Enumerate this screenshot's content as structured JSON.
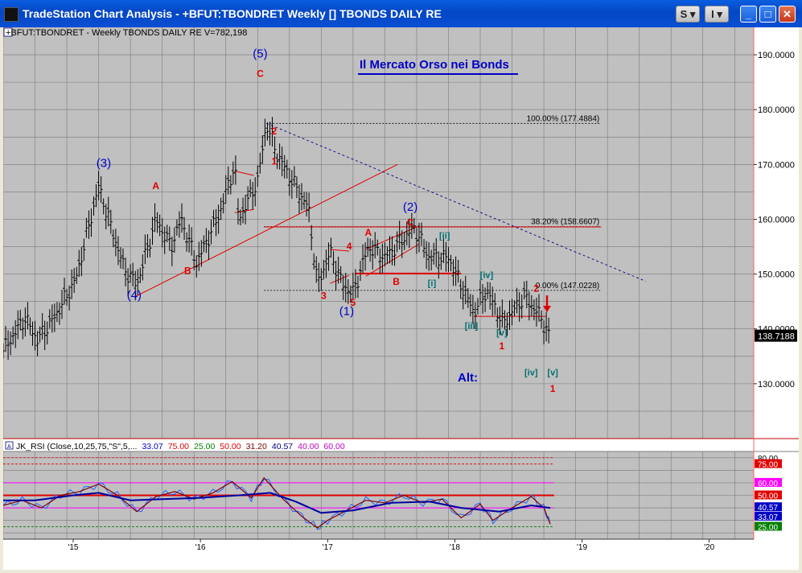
{
  "window": {
    "title": "TradeStation Chart Analysis - +BFUT:TBONDRET Weekly [] TBONDS DAILY RE",
    "buttons": {
      "style_menu": "S",
      "settings_menu": "I"
    }
  },
  "price_panel": {
    "header": "+BFUT:TBONDRET - Weekly  TBONDS DAILY RE  V=782,198",
    "chart_title": "Il Mercato Orso nei Bonds",
    "last_price": "138.7188",
    "alt_label": "Alt:"
  },
  "indicator_panel": {
    "header_label": "JK_RSI (Close,10,25,75,\"S\",5,...",
    "header_values": [
      {
        "text": "33.07",
        "color": "#0000c8"
      },
      {
        "text": "75.00",
        "color": "#e00000"
      },
      {
        "text": "25.00",
        "color": "#008000"
      },
      {
        "text": "50.00",
        "color": "#e00000"
      },
      {
        "text": "31.20",
        "color": "#800000"
      },
      {
        "text": "40.57",
        "color": "#000080"
      },
      {
        "text": "40.00",
        "color": "#c000c0"
      },
      {
        "text": "60.00",
        "color": "#c000c0"
      }
    ],
    "tags": [
      {
        "text": "80.00",
        "y": 80,
        "bg": "#ffffff",
        "fg": "#000000"
      },
      {
        "text": "75.00",
        "y": 75,
        "bg": "#e00000",
        "fg": "#ffffff"
      },
      {
        "text": "60.00",
        "y": 60,
        "bg": "#ff00ff",
        "fg": "#ffffff"
      },
      {
        "text": "50.00",
        "y": 50,
        "bg": "#e00000",
        "fg": "#ffffff"
      },
      {
        "text": "40.57",
        "y": 40.57,
        "bg": "#0000c8",
        "fg": "#ffffff"
      },
      {
        "text": "33.07",
        "y": 33.07,
        "bg": "#0000c8",
        "fg": "#ffffff"
      },
      {
        "text": "25.00",
        "y": 25,
        "bg": "#008000",
        "fg": "#ffffff"
      }
    ]
  },
  "colors": {
    "blue": "#0000c8",
    "red": "#e00000",
    "teal": "#007070",
    "price_tag_bg": "#000000"
  },
  "chart_data": {
    "type": "bar",
    "x_tick_labels": [
      "'15",
      "'16",
      "'17",
      "'18",
      "'19",
      "'20"
    ],
    "x_ticks": [
      2015,
      2016,
      2017,
      2018,
      2019,
      2020
    ],
    "x_range": [
      2014.45,
      2020.35
    ],
    "y_tick_labels": [
      "130.0000",
      "140.0000",
      "150.0000",
      "160.0000",
      "170.0000",
      "180.0000",
      "190.0000"
    ],
    "y_ticks": [
      130,
      140,
      150,
      160,
      170,
      180,
      190
    ],
    "y_range": [
      120,
      195
    ],
    "price_path": [
      [
        2014.45,
        136
      ],
      [
        2014.62,
        142
      ],
      [
        2014.72,
        138
      ],
      [
        2014.85,
        142
      ],
      [
        2015.02,
        149
      ],
      [
        2015.2,
        166
      ],
      [
        2015.4,
        151
      ],
      [
        2015.5,
        148
      ],
      [
        2015.65,
        160
      ],
      [
        2015.77,
        155
      ],
      [
        2015.85,
        160
      ],
      [
        2015.97,
        152
      ],
      [
        2016.15,
        161
      ],
      [
        2016.27,
        170
      ],
      [
        2016.3,
        160
      ],
      [
        2016.45,
        167
      ],
      [
        2016.52,
        177.5
      ],
      [
        2016.6,
        172
      ],
      [
        2016.72,
        167
      ],
      [
        2016.85,
        162
      ],
      [
        2016.92,
        148
      ],
      [
        2017.02,
        154
      ],
      [
        2017.12,
        148
      ],
      [
        2017.2,
        146.5
      ],
      [
        2017.32,
        155
      ],
      [
        2017.45,
        153
      ],
      [
        2017.68,
        158.5
      ],
      [
        2017.8,
        153
      ],
      [
        2017.95,
        153
      ],
      [
        2018.05,
        148
      ],
      [
        2018.15,
        143
      ],
      [
        2018.25,
        147
      ],
      [
        2018.38,
        141
      ],
      [
        2018.55,
        146
      ],
      [
        2018.68,
        142
      ],
      [
        2018.74,
        138.7
      ]
    ],
    "fib_levels": [
      {
        "label": "100.00% (177.4884)",
        "value": 177.4884
      },
      {
        "label": "38.20% (158.6607)",
        "value": 158.6607
      },
      {
        "label": "0.00% (147.0228)",
        "value": 147.0228
      }
    ],
    "wave_labels": [
      {
        "text": "(3)",
        "x": 2015.24,
        "y": 169.5,
        "color": "blue"
      },
      {
        "text": "(4)",
        "x": 2015.48,
        "y": 145.5,
        "color": "blue"
      },
      {
        "text": "(5)",
        "x": 2016.47,
        "y": 189.5,
        "color": "blue"
      },
      {
        "text": "C",
        "x": 2016.47,
        "y": 186,
        "color": "red"
      },
      {
        "text": "A",
        "x": 2015.65,
        "y": 165.5,
        "color": "red"
      },
      {
        "text": "B",
        "x": 2015.9,
        "y": 150,
        "color": "red"
      },
      {
        "text": "2",
        "x": 2016.58,
        "y": 175.5,
        "color": "red"
      },
      {
        "text": "1",
        "x": 2016.58,
        "y": 170,
        "color": "red"
      },
      {
        "text": "3",
        "x": 2016.97,
        "y": 145.5,
        "color": "red"
      },
      {
        "text": "4",
        "x": 2017.17,
        "y": 154.5,
        "color": "red"
      },
      {
        "text": "5",
        "x": 2017.2,
        "y": 144.2,
        "color": "red"
      },
      {
        "text": "(1)",
        "x": 2017.15,
        "y": 142.5,
        "color": "blue"
      },
      {
        "text": "(2)",
        "x": 2017.65,
        "y": 161.5,
        "color": "blue"
      },
      {
        "text": "C",
        "x": 2017.65,
        "y": 158.8,
        "color": "red"
      },
      {
        "text": "A",
        "x": 2017.32,
        "y": 157,
        "color": "red"
      },
      {
        "text": "B",
        "x": 2017.54,
        "y": 148,
        "color": "red"
      },
      {
        "text": "[ii]",
        "x": 2017.92,
        "y": 156.5,
        "color": "teal"
      },
      {
        "text": "[i]",
        "x": 2017.82,
        "y": 147.8,
        "color": "teal"
      },
      {
        "text": "[iii]",
        "x": 2018.13,
        "y": 140,
        "color": "teal"
      },
      {
        "text": "[iv]",
        "x": 2018.25,
        "y": 149.3,
        "color": "teal"
      },
      {
        "text": "[v]",
        "x": 2018.37,
        "y": 138.8,
        "color": "teal"
      },
      {
        "text": "1",
        "x": 2018.37,
        "y": 136.3,
        "color": "red"
      },
      {
        "text": "2",
        "x": 2018.64,
        "y": 146.8,
        "color": "red"
      },
      {
        "text": "[iv]",
        "x": 2018.6,
        "y": 131.5,
        "color": "teal"
      },
      {
        "text": "[v]",
        "x": 2018.77,
        "y": 131.5,
        "color": "teal"
      },
      {
        "text": "1",
        "x": 2018.77,
        "y": 128.5,
        "color": "red"
      }
    ],
    "rsi": {
      "y_range": [
        15,
        85
      ],
      "levels": [
        75,
        60,
        50,
        40,
        25
      ],
      "fast": [
        [
          2014.45,
          42
        ],
        [
          2014.6,
          46
        ],
        [
          2014.75,
          40
        ],
        [
          2014.9,
          50
        ],
        [
          2015.05,
          53
        ],
        [
          2015.2,
          59
        ],
        [
          2015.35,
          50
        ],
        [
          2015.5,
          37
        ],
        [
          2015.65,
          49
        ],
        [
          2015.8,
          53
        ],
        [
          2015.95,
          47
        ],
        [
          2016.1,
          52
        ],
        [
          2016.25,
          61
        ],
        [
          2016.4,
          48
        ],
        [
          2016.5,
          64
        ],
        [
          2016.65,
          47
        ],
        [
          2016.8,
          33
        ],
        [
          2016.92,
          24
        ],
        [
          2017.0,
          30
        ],
        [
          2017.15,
          38
        ],
        [
          2017.3,
          46
        ],
        [
          2017.45,
          44
        ],
        [
          2017.6,
          50
        ],
        [
          2017.75,
          44
        ],
        [
          2017.9,
          47
        ],
        [
          2018.05,
          32
        ],
        [
          2018.2,
          43
        ],
        [
          2018.3,
          30
        ],
        [
          2018.45,
          40
        ],
        [
          2018.6,
          49
        ],
        [
          2018.7,
          40
        ],
        [
          2018.75,
          27
        ]
      ],
      "slow": [
        [
          2014.45,
          46
        ],
        [
          2014.7,
          46
        ],
        [
          2015.0,
          50
        ],
        [
          2015.2,
          52
        ],
        [
          2015.45,
          46
        ],
        [
          2015.7,
          47
        ],
        [
          2016.0,
          48
        ],
        [
          2016.3,
          50
        ],
        [
          2016.55,
          52
        ],
        [
          2016.75,
          45
        ],
        [
          2016.95,
          36
        ],
        [
          2017.2,
          38
        ],
        [
          2017.5,
          44
        ],
        [
          2017.8,
          45
        ],
        [
          2018.05,
          40
        ],
        [
          2018.35,
          37
        ],
        [
          2018.6,
          42
        ],
        [
          2018.75,
          40
        ]
      ]
    }
  }
}
